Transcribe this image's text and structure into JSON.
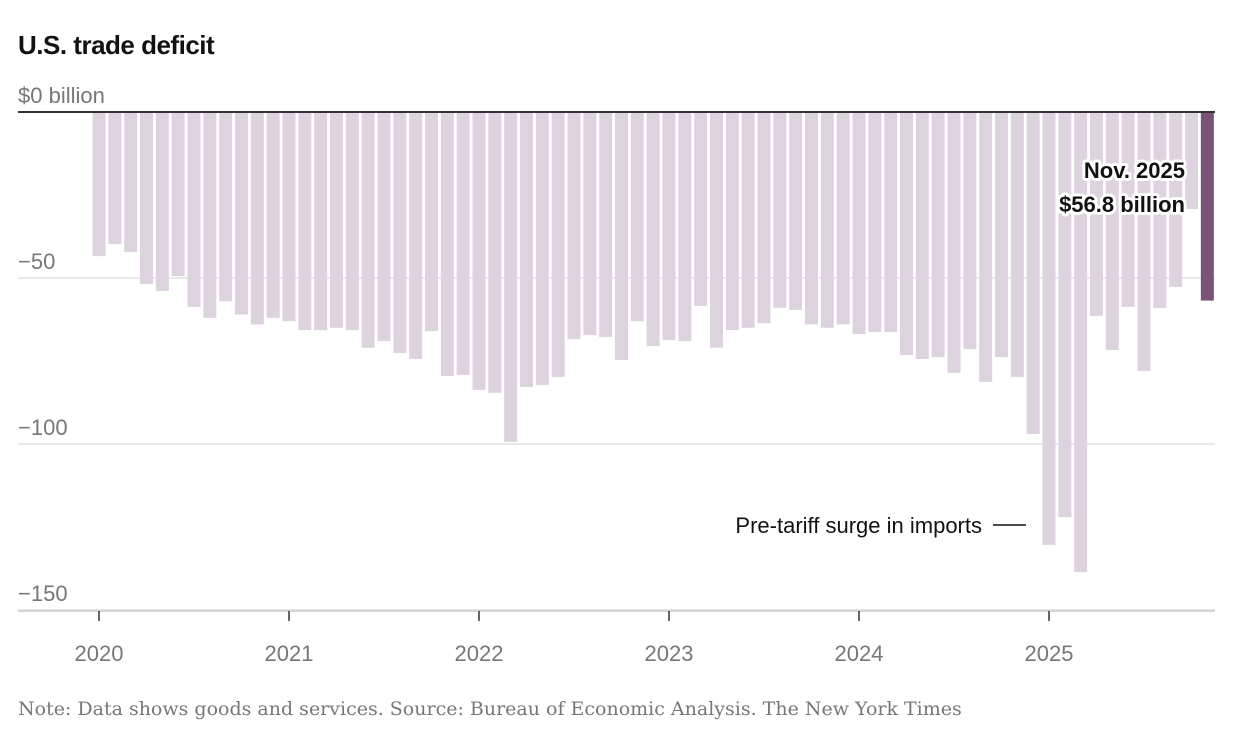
{
  "chart_data": {
    "type": "bar",
    "title": "U.S. trade deficit",
    "ylabel": "$0 billion",
    "ylim": [
      -150,
      0
    ],
    "yticks": [
      {
        "v": 0,
        "label": "$0 billion"
      },
      {
        "v": -50,
        "label": "−50"
      },
      {
        "v": -100,
        "label": "−100"
      },
      {
        "v": -150,
        "label": "−150"
      }
    ],
    "xticks": [
      "2020",
      "2021",
      "2022",
      "2023",
      "2024",
      "2025"
    ],
    "start": "Jan 2020",
    "values": [
      -43.4,
      -39.8,
      -42.2,
      -51.8,
      -53.9,
      -49.4,
      -58.7,
      -62,
      -57,
      -61,
      -64,
      -62,
      -63,
      -65.7,
      -65.7,
      -65,
      -65.7,
      -71,
      -69,
      -72.6,
      -74.4,
      -66,
      -79.5,
      -79.2,
      -83.7,
      -84.6,
      -99.4,
      -82.8,
      -82.2,
      -79.8,
      -68.4,
      -67.2,
      -67.8,
      -74.7,
      -63,
      -70.5,
      -68.7,
      -69,
      -58.4,
      -71,
      -65.7,
      -65,
      -63.6,
      -59,
      -59.6,
      -64,
      -65,
      -64,
      -66.9,
      -66.3,
      -66.3,
      -73.2,
      -74.4,
      -73.8,
      -78.6,
      -71.4,
      -81.3,
      -73.8,
      -79.8,
      -97,
      -130.4,
      -122,
      -138.6,
      -61.4,
      -71.7,
      -58.7,
      -78,
      -59,
      -52.7,
      -29.2,
      -56.8
    ],
    "highlight_label": [
      "Nov. 2025",
      "$56.8 billion"
    ],
    "annotation": "Pre-tariff surge in imports",
    "colors": {
      "bar": "#dcd3de",
      "highlight": "#7a5275"
    }
  },
  "note": "Note: Data shows goods and services.  Source: Bureau of Economic Analysis.  The New York Times"
}
